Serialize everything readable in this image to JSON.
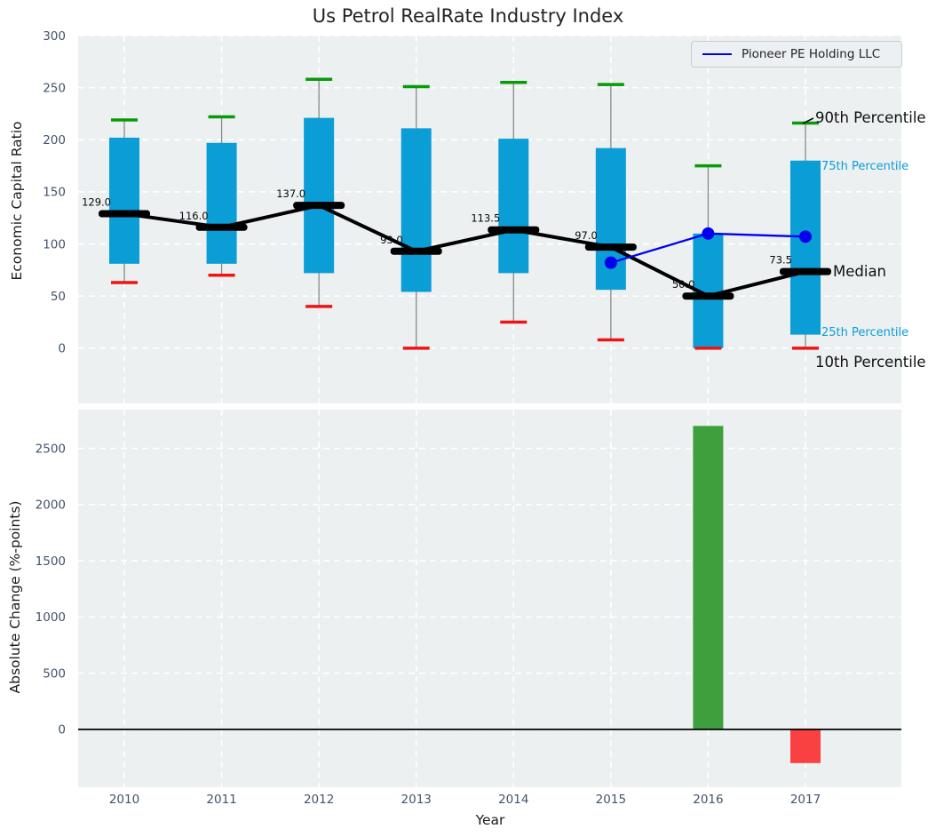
{
  "title": "Us Petrol RealRate Industry Index",
  "legend": {
    "label": "Pioneer PE Holding LLC"
  },
  "annotations": {
    "p90": "90th Percentile",
    "p75": "75th Percentile",
    "median": "Median",
    "p25": "25th Percentile",
    "p10": "10th Percentile"
  },
  "colors": {
    "figure_bg": "#ffffff",
    "axes_bg": "#ecf0f1",
    "grid": "#ffffff",
    "box_fill": "#0a9dd6",
    "percentile_text": "#0a9dd6",
    "whisker_top": "#089a08",
    "whisker_bottom": "#ee1414",
    "stem": "#878787",
    "median_line": "#000000",
    "company_line": "#0000ee",
    "bar_positive": "#3ea03c",
    "bar_negative": "#fa4141",
    "tick_label": "#42536b",
    "zero_line": "#000000"
  },
  "chart_data": [
    {
      "type": "box-percentile",
      "title": "Us Petrol RealRate Industry Index",
      "ylabel": "Economic Capital Ratio",
      "yticks": [
        0,
        50,
        100,
        150,
        200,
        250,
        300
      ],
      "ylim": [
        -53,
        300
      ],
      "grid": true,
      "legend_position": "upper right",
      "categories": [
        "2010",
        "2011",
        "2012",
        "2013",
        "2014",
        "2015",
        "2016",
        "2017"
      ],
      "series": [
        {
          "name": "10th Percentile",
          "values": [
            63,
            70,
            40,
            0,
            25,
            8,
            0,
            0
          ]
        },
        {
          "name": "25th Percentile",
          "values": [
            81,
            81,
            72,
            54,
            72,
            56,
            0,
            13
          ]
        },
        {
          "name": "Median",
          "values": [
            129.0,
            116.0,
            137.0,
            93.0,
            113.5,
            97.0,
            50.0,
            73.5
          ]
        },
        {
          "name": "75th Percentile",
          "values": [
            202,
            197,
            221,
            211,
            201,
            192,
            110,
            180
          ]
        },
        {
          "name": "90th Percentile",
          "values": [
            219,
            222,
            258,
            251,
            255,
            253,
            175,
            216
          ]
        }
      ],
      "median_labels": [
        "129.0",
        "116.0",
        "137.0",
        "93.0",
        "113.5",
        "97.0",
        "50.0",
        "73.5"
      ],
      "company_line": {
        "name": "Pioneer PE Holding LLC",
        "x": [
          "2015",
          "2016",
          "2017"
        ],
        "values": [
          82,
          110,
          107
        ]
      }
    },
    {
      "type": "bar",
      "ylabel": "Absolute Change (%-points)",
      "xlabel": "Year",
      "yticks": [
        0,
        500,
        1000,
        1500,
        2000,
        2500
      ],
      "ylim": [
        -515,
        2845
      ],
      "grid": true,
      "categories": [
        "2010",
        "2011",
        "2012",
        "2013",
        "2014",
        "2015",
        "2016",
        "2017"
      ],
      "values": [
        0,
        0,
        0,
        0,
        0,
        0,
        2700,
        -300
      ]
    }
  ]
}
